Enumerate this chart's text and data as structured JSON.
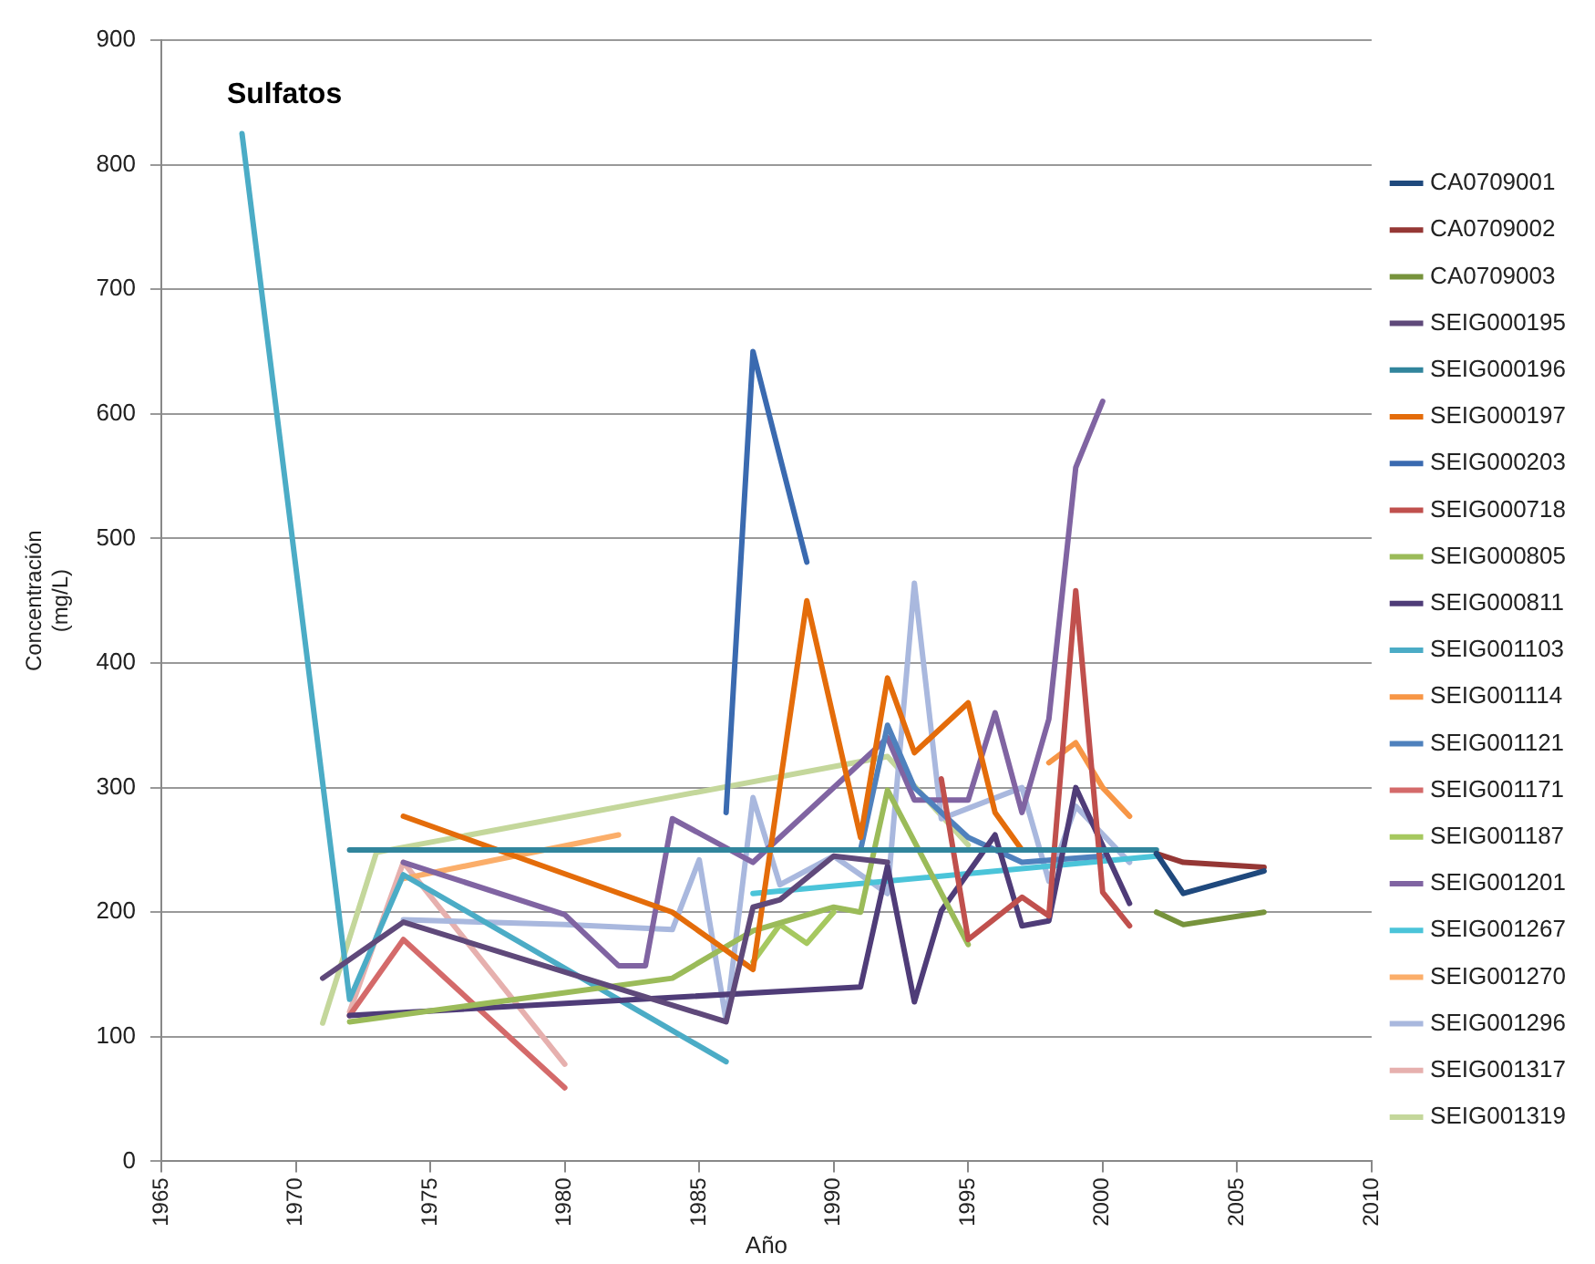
{
  "chart_data": {
    "type": "line",
    "title": "Sulfatos",
    "xlabel": "Año",
    "ylabel": "Concentración\n(mg/L)",
    "xlim": [
      1965,
      2010
    ],
    "xticks": [
      1965,
      1970,
      1975,
      1980,
      1985,
      1990,
      1995,
      2000,
      2005,
      2010
    ],
    "ylim": [
      0,
      900
    ],
    "yticks": [
      0,
      100,
      200,
      300,
      400,
      500,
      600,
      700,
      800,
      900
    ],
    "grid": "y",
    "legend": "right",
    "marker": "none",
    "line_style": "solid",
    "series": [
      {
        "name": "CA0709001",
        "color": "#1f497d",
        "x": [
          2002,
          2003,
          2006
        ],
        "values": [
          247,
          215,
          233
        ]
      },
      {
        "name": "CA0709002",
        "color": "#953735",
        "x": [
          2002,
          2003,
          2006
        ],
        "values": [
          247,
          240,
          236
        ]
      },
      {
        "name": "CA0709003",
        "color": "#77933c",
        "x": [
          2002,
          2003,
          2006
        ],
        "values": [
          200,
          190,
          200
        ]
      },
      {
        "name": "SEIG000195",
        "color": "#5f497a",
        "x": [
          1971,
          1974,
          1986,
          1987,
          1988,
          1990,
          1992
        ],
        "values": [
          147,
          192,
          112,
          204,
          210,
          245,
          240
        ]
      },
      {
        "name": "SEIG000196",
        "color": "#31859c",
        "x": [
          1972,
          2002
        ],
        "values": [
          250,
          250
        ]
      },
      {
        "name": "SEIG000197",
        "color": "#e46c0a",
        "x": [
          1974,
          1984,
          1987,
          1989,
          1991,
          1992,
          1993,
          1995,
          1996,
          1997
        ],
        "values": [
          277,
          200,
          154,
          450,
          260,
          388,
          328,
          368,
          280,
          250
        ]
      },
      {
        "name": "SEIG000203",
        "color": "#3a6ab0",
        "x": [
          1986,
          1987,
          1989
        ],
        "values": [
          280,
          650,
          481
        ]
      },
      {
        "name": "SEIG000718",
        "color": "#c0504d",
        "x": [
          1994,
          1995,
          1997,
          1998,
          1999,
          2000,
          2001
        ],
        "values": [
          307,
          178,
          212,
          197,
          458,
          216,
          189
        ]
      },
      {
        "name": "SEIG000805",
        "color": "#9bbb59",
        "x": [
          1972,
          1984,
          1987,
          1990,
          1991,
          1992,
          1995
        ],
        "values": [
          112,
          147,
          185,
          204,
          200,
          298,
          174
        ]
      },
      {
        "name": "SEIG000811",
        "color": "#4f3c78",
        "x": [
          1972,
          1991,
          1992,
          1993,
          1994,
          1996,
          1997,
          1998,
          1999,
          2001
        ],
        "values": [
          117,
          140,
          237,
          128,
          201,
          262,
          189,
          193,
          300,
          207
        ]
      },
      {
        "name": "SEIG001103",
        "color": "#4bacc6",
        "x": [
          1968,
          1972,
          1974,
          1986
        ],
        "values": [
          825,
          130,
          230,
          80
        ]
      },
      {
        "name": "SEIG001114",
        "color": "#f79646",
        "x": [
          1998,
          1999,
          2000,
          2001
        ],
        "values": [
          320,
          336,
          300,
          277
        ]
      },
      {
        "name": "SEIG001121",
        "color": "#4f81bd",
        "x": [
          1991,
          1992,
          1993,
          1995,
          1997,
          2000
        ],
        "values": [
          250,
          350,
          300,
          260,
          240,
          245
        ]
      },
      {
        "name": "SEIG001171",
        "color": "#d46a6a",
        "x": [
          1972,
          1974,
          1980
        ],
        "values": [
          117,
          178,
          59
        ]
      },
      {
        "name": "SEIG001187",
        "color": "#a6c85f",
        "x": [
          1987,
          1988,
          1989,
          1990
        ],
        "values": [
          160,
          190,
          175,
          200
        ]
      },
      {
        "name": "SEIG001201",
        "color": "#8064a2",
        "x": [
          1974,
          1980,
          1982,
          1983,
          1984,
          1987,
          1992,
          1993,
          1995,
          1996,
          1997,
          1998,
          1999,
          2000
        ],
        "values": [
          240,
          198,
          157,
          157,
          275,
          240,
          340,
          290,
          290,
          360,
          280,
          355,
          557,
          610
        ]
      },
      {
        "name": "SEIG001267",
        "color": "#4bc4d9",
        "x": [
          1987,
          2002
        ],
        "values": [
          215,
          245
        ]
      },
      {
        "name": "SEIG001270",
        "color": "#fbae6a",
        "x": [
          1974,
          1982
        ],
        "values": [
          227,
          262
        ]
      },
      {
        "name": "SEIG001296",
        "color": "#a9b8de",
        "x": [
          1974,
          1980,
          1984,
          1985,
          1986,
          1987,
          1988,
          1990,
          1992,
          1993,
          1994,
          1997,
          1998,
          1999,
          2001
        ],
        "values": [
          194,
          190,
          186,
          242,
          113,
          292,
          222,
          245,
          215,
          464,
          275,
          300,
          225,
          285,
          240
        ]
      },
      {
        "name": "SEIG001317",
        "color": "#e6b0ae",
        "x": [
          1972,
          1974,
          1980
        ],
        "values": [
          120,
          240,
          78
        ]
      },
      {
        "name": "SEIG001319",
        "color": "#c4d79b",
        "x": [
          1971,
          1973,
          1992,
          1995
        ],
        "values": [
          111,
          248,
          325,
          254
        ]
      }
    ]
  }
}
